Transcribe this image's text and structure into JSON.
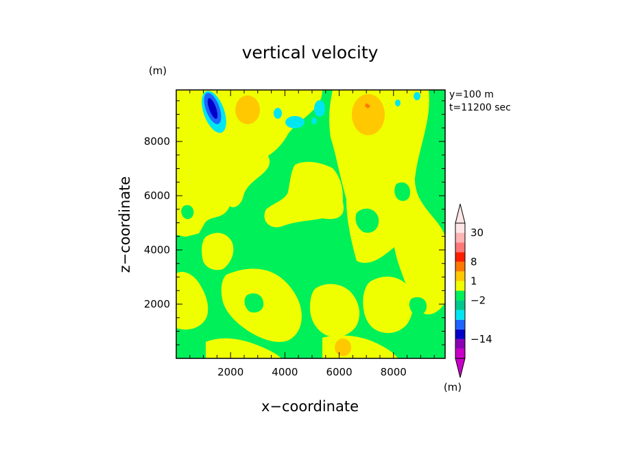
{
  "chart_data": {
    "type": "heatmap",
    "title": "vertical velocity",
    "xlabel": "x−coordinate",
    "ylabel": "z−coordinate",
    "x_unit": "(m)",
    "y_unit": "(m)",
    "info": [
      "y=100 m",
      "t=11200 sec"
    ],
    "xlim": [
      0,
      9900
    ],
    "ylim": [
      0,
      9900
    ],
    "x_ticks": [
      2000,
      4000,
      6000,
      8000
    ],
    "y_ticks": [
      2000,
      4000,
      6000,
      8000
    ],
    "x_tick_labels": [
      "2000",
      "4000",
      "6000",
      "8000"
    ],
    "y_tick_labels": [
      "2000",
      "4000",
      "6000",
      "8000"
    ],
    "colorbar": {
      "unit": "(m)",
      "labels": [
        {
          "level": 30,
          "text": "30"
        },
        {
          "level": 8,
          "text": "8"
        },
        {
          "level": 1,
          "text": "1"
        },
        {
          "level": -2,
          "text": "−2"
        },
        {
          "level": -14,
          "text": "−14"
        }
      ],
      "bands": [
        {
          "color": "#c800c8"
        },
        {
          "color": "#8c00b4"
        },
        {
          "color": "#0000c8"
        },
        {
          "color": "#1e64ff"
        },
        {
          "color": "#00e6f0"
        },
        {
          "color": "#00c88c"
        },
        {
          "color": "#00f05a"
        },
        {
          "color": "#f0ff00"
        },
        {
          "color": "#ffc800"
        },
        {
          "color": "#ff7800"
        },
        {
          "color": "#ff1e00"
        },
        {
          "color": "#ff7878"
        },
        {
          "color": "#ffb4b4"
        },
        {
          "color": "#ffe6e6"
        }
      ]
    },
    "colors": {
      "background_field": "#00f05a",
      "positive_weak": "#f0ff00",
      "positive_moderate": "#ffc800",
      "positive_strong": "#ff7800",
      "negative_weak": "#00e6f0",
      "negative_strong": "#1e64ff",
      "negative_core": "#0000c8"
    },
    "features": [
      {
        "kind": "updraft",
        "level": "positive_weak",
        "x": 1500,
        "z": 7000
      },
      {
        "kind": "updraft",
        "level": "positive_weak",
        "x": 6800,
        "z": 7300
      },
      {
        "kind": "updraft",
        "level": "positive_moderate",
        "x": 2850,
        "z": 8950
      },
      {
        "kind": "updraft",
        "level": "positive_moderate",
        "x": 7100,
        "z": 9100
      },
      {
        "kind": "updraft",
        "level": "positive_moderate",
        "x": 6100,
        "z": 400
      },
      {
        "kind": "downdraft",
        "level": "negative_core",
        "x": 1300,
        "z": 9200
      },
      {
        "kind": "downdraft",
        "level": "negative_weak",
        "x": 4000,
        "z": 8800
      },
      {
        "kind": "downdraft",
        "level": "negative_weak",
        "x": 5300,
        "z": 9150
      }
    ]
  }
}
